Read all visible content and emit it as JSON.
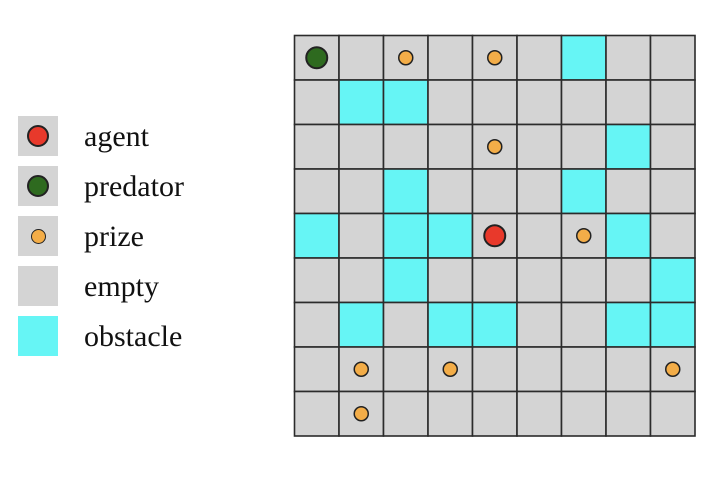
{
  "colors": {
    "agent": "#e8392b",
    "predator": "#2e6a1f",
    "prize": "#f3ad48",
    "empty": "#d4d4d4",
    "obstacle": "#66f5f5",
    "gridline": "#2b2b2b"
  },
  "legend": [
    {
      "key": "agent",
      "label": "agent"
    },
    {
      "key": "predator",
      "label": "predator"
    },
    {
      "key": "prize",
      "label": "prize"
    },
    {
      "key": "empty",
      "label": "empty"
    },
    {
      "key": "obstacle",
      "label": "obstacle"
    }
  ],
  "grid": {
    "rows": 9,
    "cols": 9,
    "obstacles": [
      [
        0,
        6
      ],
      [
        1,
        1
      ],
      [
        1,
        2
      ],
      [
        2,
        7
      ],
      [
        3,
        2
      ],
      [
        3,
        6
      ],
      [
        4,
        0
      ],
      [
        4,
        2
      ],
      [
        4,
        3
      ],
      [
        4,
        7
      ],
      [
        5,
        2
      ],
      [
        5,
        8
      ],
      [
        6,
        1
      ],
      [
        6,
        3
      ],
      [
        6,
        4
      ],
      [
        6,
        7
      ],
      [
        6,
        8
      ]
    ],
    "prizes": [
      [
        0,
        2
      ],
      [
        0,
        4
      ],
      [
        2,
        4
      ],
      [
        4,
        6
      ],
      [
        7,
        1
      ],
      [
        7,
        3
      ],
      [
        7,
        8
      ],
      [
        8,
        1
      ]
    ],
    "agent": [
      4,
      4
    ],
    "predator": [
      0,
      0
    ]
  }
}
